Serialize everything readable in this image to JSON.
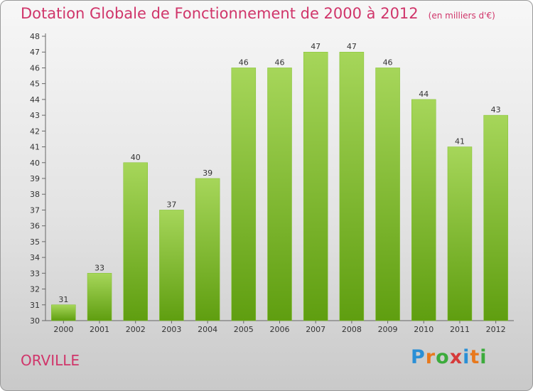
{
  "title": "Dotation Globale de Fonctionnement de 2000 à 2012",
  "unit": "(en milliers d'€)",
  "commune": "ORVILLE",
  "logo": {
    "letters": [
      "P",
      "r",
      "o",
      "x",
      "i",
      "t",
      "i"
    ],
    "colors": [
      "#2a8fd6",
      "#e8791d",
      "#3cab3c",
      "#d63a3a",
      "#2a8fd6",
      "#e8791d",
      "#3cab3c"
    ]
  },
  "colors": {
    "accent": "#d0356a",
    "bar_light": "#a6d65a",
    "bar_dark": "#5f9e10"
  },
  "chart_data": {
    "type": "bar",
    "title": "Dotation Globale de Fonctionnement de 2000 à 2012",
    "xlabel": "",
    "ylabel": "",
    "categories": [
      "2000",
      "2001",
      "2002",
      "2003",
      "2004",
      "2005",
      "2006",
      "2007",
      "2008",
      "2009",
      "2010",
      "2011",
      "2012"
    ],
    "values": [
      31,
      33,
      40,
      37,
      39,
      46,
      46,
      47,
      47,
      46,
      44,
      41,
      43
    ],
    "ylim": [
      30,
      48
    ],
    "yticks": [
      30,
      31,
      32,
      33,
      34,
      35,
      36,
      37,
      38,
      39,
      40,
      41,
      42,
      43,
      44,
      45,
      46,
      47,
      48
    ],
    "grid": false,
    "data_labels": true
  }
}
